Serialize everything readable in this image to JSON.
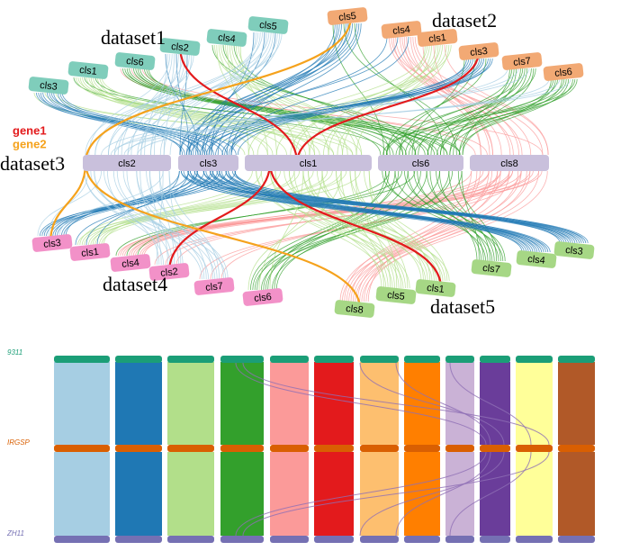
{
  "top": {
    "groups": [
      {
        "name": "dataset1",
        "clusters": [
          "cls3",
          "cls1",
          "cls6",
          "cls2",
          "cls4",
          "cls5"
        ]
      },
      {
        "name": "dataset2",
        "clusters": [
          "cls5",
          "cls4",
          "cls1",
          "cls3",
          "cls7",
          "cls6"
        ]
      },
      {
        "name": "dataset3",
        "clusters": [
          "cls2",
          "cls3",
          "cls1",
          "cls6",
          "cls8"
        ]
      },
      {
        "name": "dataset4",
        "clusters": [
          "cls3",
          "cls1",
          "cls4",
          "cls2",
          "cls7",
          "cls6"
        ]
      },
      {
        "name": "dataset5",
        "clusters": [
          "cls8",
          "cls5",
          "cls1",
          "cls7",
          "cls4",
          "cls3"
        ]
      }
    ],
    "legend": [
      "gene1",
      "gene2"
    ]
  },
  "bottom": {
    "tracks": [
      "9311",
      "IRGSP",
      "ZH11"
    ]
  }
}
